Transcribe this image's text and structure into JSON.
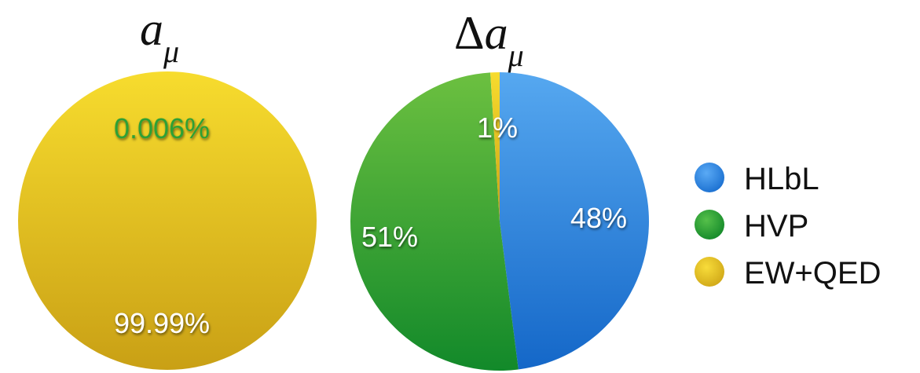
{
  "chart_data": [
    {
      "type": "pie",
      "title": "a_μ",
      "slices": [
        {
          "label": "EW+QED",
          "value": 99.99,
          "value_label": "99.99%",
          "color": "#f0c41f"
        },
        {
          "label": "HVP",
          "value": 0.006,
          "value_label": "0.006%",
          "color": "#2fa035"
        }
      ]
    },
    {
      "type": "pie",
      "title": "Δa_μ",
      "slices": [
        {
          "label": "HLbL",
          "value": 48,
          "value_label": "48%",
          "color": "#2e86de"
        },
        {
          "label": "HVP",
          "value": 51,
          "value_label": "51%",
          "color": "#2fa035"
        },
        {
          "label": "EW+QED",
          "value": 1,
          "value_label": "1%",
          "color": "#f0c41f"
        }
      ]
    }
  ],
  "legend": {
    "placement": "right",
    "items": [
      {
        "label": "HLbL",
        "color": "#2e86de"
      },
      {
        "label": "HVP",
        "color": "#2fa035"
      },
      {
        "label": "EW+QED",
        "color": "#f0c41f"
      }
    ]
  },
  "titles": {
    "left_main": "a",
    "left_sub": "μ",
    "right_delta": "Δ",
    "right_main": "a",
    "right_sub": "μ"
  }
}
